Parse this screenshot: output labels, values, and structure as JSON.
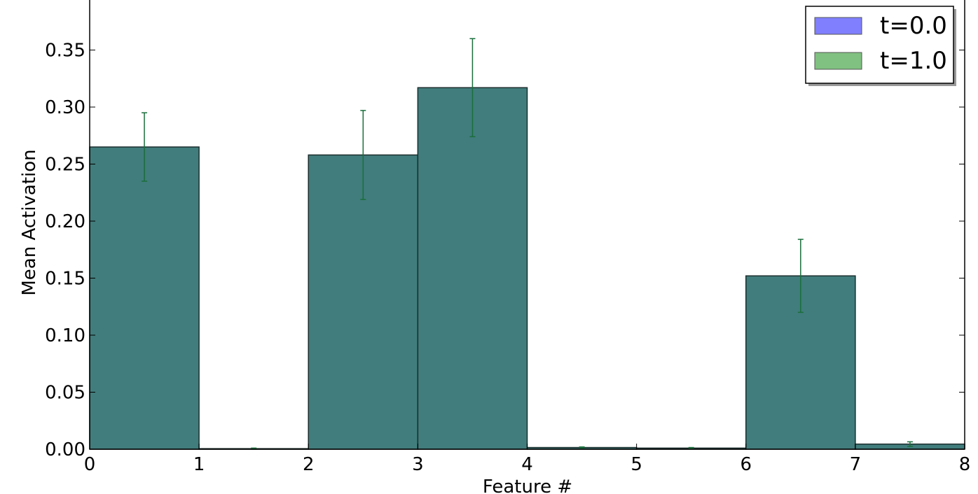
{
  "chart_data": {
    "type": "bar",
    "xlabel": "Feature #",
    "ylabel": "Mean Activation",
    "xlim": [
      0,
      8
    ],
    "ylim": [
      0,
      0.4
    ],
    "x_ticks": [
      "0",
      "1",
      "2",
      "3",
      "4",
      "5",
      "6",
      "7",
      "8"
    ],
    "y_ticks": [
      "0.00",
      "0.05",
      "0.10",
      "0.15",
      "0.20",
      "0.25",
      "0.30",
      "0.35"
    ],
    "categories": [
      0,
      1,
      2,
      3,
      4,
      5,
      6,
      7
    ],
    "legend_position": "top-right",
    "series": [
      {
        "name": "t=0.0",
        "color": "#8080ff",
        "values": [
          0.265,
          0.0005,
          0.258,
          0.317,
          0.0015,
          0.001,
          0.152,
          0.0045
        ],
        "errors": [
          0.03,
          0.0005,
          0.039,
          0.043,
          0.0005,
          0.0005,
          0.032,
          0.002
        ]
      },
      {
        "name": "t=1.0",
        "color": "#80c080",
        "values": [
          0.265,
          0.0005,
          0.258,
          0.317,
          0.0015,
          0.001,
          0.152,
          0.0045
        ],
        "errors": [
          0.03,
          0.0005,
          0.039,
          0.043,
          0.0005,
          0.0005,
          0.032,
          0.002
        ]
      }
    ],
    "overlap_color": "#417d7c",
    "errorbar_color": "#1a6e3c",
    "grid": false
  }
}
